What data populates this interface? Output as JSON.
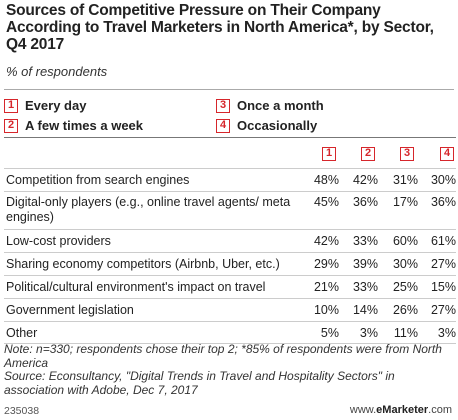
{
  "title": "Sources of Competitive Pressure on Their Company According to Travel Marketers in North America*, by Sector, Q4 2017",
  "subtitle": "% of respondents",
  "legend": [
    {
      "key": "1",
      "label": "Every day"
    },
    {
      "key": "2",
      "label": "A few times a week"
    },
    {
      "key": "3",
      "label": "Once a month"
    },
    {
      "key": "4",
      "label": "Occasionally"
    }
  ],
  "chart_data": {
    "type": "table",
    "title": "Sources of Competitive Pressure on Their Company According to Travel Marketers in North America*, by Sector, Q4 2017",
    "subtitle": "% of respondents",
    "columns": [
      "1",
      "2",
      "3",
      "4"
    ],
    "rows": [
      {
        "label": "Competition from search engines",
        "values": [
          "48%",
          "42%",
          "31%",
          "30%"
        ]
      },
      {
        "label": "Digital-only players (e.g., online travel agents/ meta engines)",
        "values": [
          "45%",
          "36%",
          "17%",
          "36%"
        ]
      },
      {
        "label": "Low-cost providers",
        "values": [
          "42%",
          "33%",
          "60%",
          "61%"
        ]
      },
      {
        "label": "Sharing economy competitors (Airbnb, Uber, etc.)",
        "values": [
          "29%",
          "39%",
          "30%",
          "27%"
        ]
      },
      {
        "label": "Political/cultural environment's impact on travel",
        "values": [
          "21%",
          "33%",
          "25%",
          "15%"
        ]
      },
      {
        "label": "Government legislation",
        "values": [
          "10%",
          "14%",
          "26%",
          "27%"
        ]
      },
      {
        "label": "Other",
        "values": [
          "5%",
          "3%",
          "11%",
          "3%"
        ]
      }
    ]
  },
  "note": "Note: n=330; respondents chose their top 2; *85% of respondents were from North America",
  "source": "Source: Econsultancy, \"Digital Trends in Travel and Hospitality Sectors\" in association with Adobe, Dec 7, 2017",
  "footer": {
    "chart_id": "235038",
    "brand_prefix": "www.",
    "brand_name": "eMarketer",
    "brand_suffix": ".com"
  },
  "colors": {
    "accent": "#d6262b"
  }
}
